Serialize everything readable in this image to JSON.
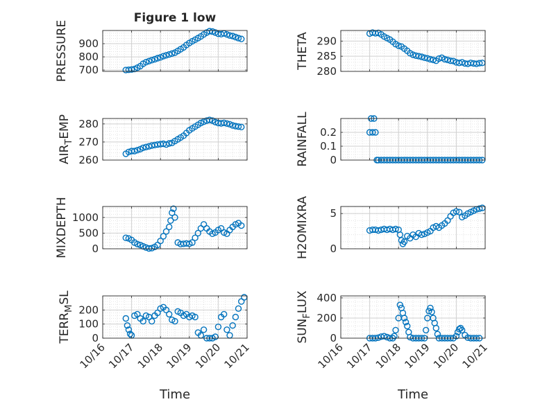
{
  "figure": {
    "title": "Figure 1 low",
    "x_ticks": [
      "10/16",
      "10/17",
      "10/18",
      "10/19",
      "10/20",
      "10/21"
    ],
    "xlabel": "Time"
  },
  "colors": {
    "marker": "#0072BD",
    "axis": "#262626",
    "grid": "#dedede"
  },
  "chart_data": [
    {
      "type": "scatter",
      "ylabel": "PRESSURE",
      "ylim": [
        690,
        1000
      ],
      "y_ticks": [
        700,
        800,
        900
      ],
      "grid": true,
      "marker": "circle",
      "x": [
        16.8,
        16.9,
        17.0,
        17.1,
        17.2,
        17.3,
        17.4,
        17.5,
        17.6,
        17.7,
        17.8,
        17.9,
        18.0,
        18.1,
        18.2,
        18.3,
        18.4,
        18.5,
        18.6,
        18.7,
        18.8,
        18.9,
        19.0,
        19.1,
        19.2,
        19.3,
        19.4,
        19.5,
        19.6,
        19.7,
        19.8,
        19.9,
        20.0,
        20.1,
        20.2,
        20.3,
        20.4,
        20.5,
        20.6,
        20.7,
        20.8
      ],
      "y": [
        700,
        702,
        704,
        708,
        718,
        730,
        748,
        760,
        768,
        775,
        782,
        790,
        796,
        805,
        812,
        818,
        825,
        832,
        845,
        858,
        872,
        890,
        905,
        918,
        930,
        942,
        955,
        970,
        985,
        995,
        992,
        985,
        975,
        972,
        978,
        970,
        962,
        958,
        950,
        942,
        936
      ]
    },
    {
      "type": "scatter",
      "ylabel": "THETA",
      "ylim": [
        280,
        293.5
      ],
      "y_ticks": [
        280,
        285,
        290
      ],
      "grid": true,
      "marker": "circle",
      "x": [
        17.0,
        17.1,
        17.2,
        17.3,
        17.4,
        17.5,
        17.6,
        17.7,
        17.8,
        17.9,
        18.0,
        18.1,
        18.2,
        18.3,
        18.4,
        18.5,
        18.6,
        18.7,
        18.8,
        18.9,
        19.0,
        19.1,
        19.2,
        19.3,
        19.4,
        19.5,
        19.6,
        19.7,
        19.8,
        19.9,
        20.0,
        20.1,
        20.2,
        20.3,
        20.4,
        20.5,
        20.6,
        20.7,
        20.8,
        20.9
      ],
      "y": [
        292.5,
        292.8,
        292.6,
        292.7,
        292.2,
        291.5,
        291.0,
        290.5,
        289.8,
        289.0,
        288.5,
        288.2,
        287.5,
        286.8,
        286.0,
        285.5,
        285.2,
        285.0,
        284.8,
        284.5,
        284.3,
        284.0,
        283.8,
        283.5,
        284.2,
        284.5,
        284.0,
        283.8,
        283.5,
        283.4,
        283.0,
        282.8,
        283.0,
        282.6,
        282.5,
        282.8,
        282.6,
        282.5,
        282.7,
        282.8
      ]
    },
    {
      "type": "scatter",
      "ylabel": "AIR_TEMP",
      "ylim": [
        260,
        283
      ],
      "y_ticks": [
        260,
        270,
        280
      ],
      "grid": true,
      "marker": "circle",
      "x": [
        16.8,
        16.9,
        17.0,
        17.1,
        17.2,
        17.3,
        17.4,
        17.5,
        17.6,
        17.7,
        17.8,
        17.9,
        18.0,
        18.1,
        18.2,
        18.3,
        18.4,
        18.5,
        18.6,
        18.7,
        18.8,
        18.9,
        19.0,
        19.1,
        19.2,
        19.3,
        19.4,
        19.5,
        19.6,
        19.7,
        19.8,
        19.9,
        20.0,
        20.1,
        20.2,
        20.3,
        20.4,
        20.5,
        20.6,
        20.7,
        20.8
      ],
      "y": [
        263.5,
        264.5,
        265.0,
        265.0,
        265.5,
        266.0,
        266.8,
        267.2,
        267.6,
        268.0,
        268.3,
        268.6,
        268.8,
        269.0,
        268.6,
        269.2,
        269.5,
        270.5,
        271.5,
        272.5,
        273.5,
        275.0,
        276.5,
        277.5,
        278.5,
        279.5,
        280.5,
        281.2,
        281.8,
        282.2,
        281.8,
        281.0,
        280.5,
        280.3,
        280.6,
        280.2,
        279.8,
        279.2,
        278.8,
        278.5,
        278.3
      ]
    },
    {
      "type": "scatter",
      "ylabel": "RAINFALL",
      "ylim": [
        0,
        0.3
      ],
      "y_ticks": [
        0,
        0.1,
        0.2
      ],
      "grid": true,
      "marker": "circle",
      "x": [
        17.0,
        17.05,
        17.1,
        17.15,
        17.2,
        17.25,
        17.3,
        17.4,
        17.5,
        17.6,
        17.7,
        17.8,
        17.9,
        18.0,
        18.1,
        18.2,
        18.3,
        18.4,
        18.5,
        18.6,
        18.7,
        18.8,
        18.9,
        19.0,
        19.1,
        19.2,
        19.3,
        19.4,
        19.5,
        19.6,
        19.7,
        19.8,
        19.9,
        20.0,
        20.1,
        20.2,
        20.3,
        20.4,
        20.5,
        20.6,
        20.7,
        20.8,
        20.9
      ],
      "y": [
        0.2,
        0.3,
        0.2,
        0.3,
        0.2,
        0.0,
        0.0,
        0.0,
        0.0,
        0.0,
        0.0,
        0.0,
        0.0,
        0.0,
        0.0,
        0.0,
        0.0,
        0.0,
        0.0,
        0.0,
        0.0,
        0.0,
        0.0,
        0.0,
        0.0,
        0.0,
        0.0,
        0.0,
        0.0,
        0.0,
        0.0,
        0.0,
        0.0,
        0.0,
        0.0,
        0.0,
        0.0,
        0.0,
        0.0,
        0.0,
        0.0,
        0.0,
        0.0
      ]
    },
    {
      "type": "scatter",
      "ylabel": "MIXDEPTH",
      "ylim": [
        0,
        1350
      ],
      "y_ticks": [
        0,
        500,
        1000
      ],
      "grid": true,
      "marker": "circle",
      "x": [
        16.8,
        16.9,
        17.0,
        17.1,
        17.2,
        17.3,
        17.4,
        17.5,
        17.6,
        17.7,
        17.8,
        17.9,
        18.0,
        18.1,
        18.2,
        18.3,
        18.35,
        18.4,
        18.45,
        18.5,
        18.6,
        18.7,
        18.8,
        18.9,
        19.0,
        19.1,
        19.2,
        19.3,
        19.4,
        19.5,
        19.6,
        19.7,
        19.8,
        19.9,
        20.0,
        20.1,
        20.2,
        20.3,
        20.4,
        20.5,
        20.6,
        20.7,
        20.8
      ],
      "y": [
        350,
        330,
        280,
        200,
        150,
        120,
        80,
        40,
        10,
        20,
        60,
        120,
        250,
        400,
        550,
        700,
        900,
        1150,
        1280,
        1000,
        200,
        150,
        160,
        170,
        160,
        200,
        350,
        500,
        650,
        780,
        650,
        550,
        480,
        520,
        600,
        650,
        520,
        480,
        600,
        700,
        780,
        820,
        740
      ]
    },
    {
      "type": "scatter",
      "ylabel": "H2OMIXRA",
      "ylim": [
        0,
        6
      ],
      "y_ticks": [
        0,
        5
      ],
      "grid": true,
      "marker": "circle",
      "x": [
        17.0,
        17.1,
        17.2,
        17.3,
        17.4,
        17.5,
        17.6,
        17.7,
        17.8,
        17.9,
        18.0,
        18.05,
        18.1,
        18.15,
        18.2,
        18.3,
        18.4,
        18.5,
        18.6,
        18.7,
        18.8,
        18.9,
        19.0,
        19.1,
        19.2,
        19.3,
        19.4,
        19.5,
        19.6,
        19.7,
        19.8,
        19.9,
        20.0,
        20.1,
        20.2,
        20.3,
        20.4,
        20.5,
        20.6,
        20.7,
        20.8,
        20.9
      ],
      "y": [
        2.6,
        2.7,
        2.7,
        2.6,
        2.7,
        2.8,
        2.7,
        2.8,
        2.7,
        2.8,
        2.7,
        2.0,
        1.2,
        0.7,
        1.0,
        1.8,
        1.5,
        2.0,
        1.7,
        2.2,
        2.0,
        2.1,
        2.3,
        2.5,
        3.0,
        3.2,
        3.0,
        3.3,
        3.6,
        4.0,
        4.6,
        5.1,
        5.3,
        5.2,
        4.5,
        4.7,
        5.0,
        5.2,
        5.4,
        5.6,
        5.7,
        5.8
      ]
    },
    {
      "type": "scatter",
      "ylabel": "TERR_MSL",
      "ylim": [
        0,
        300
      ],
      "y_ticks": [
        0,
        100,
        200
      ],
      "grid": true,
      "marker": "circle",
      "x": [
        16.8,
        16.85,
        16.9,
        16.95,
        17.0,
        17.1,
        17.2,
        17.3,
        17.4,
        17.5,
        17.6,
        17.7,
        17.8,
        17.9,
        18.0,
        18.1,
        18.2,
        18.3,
        18.4,
        18.5,
        18.6,
        18.7,
        18.8,
        18.9,
        19.0,
        19.1,
        19.2,
        19.3,
        19.4,
        19.5,
        19.6,
        19.7,
        19.8,
        19.9,
        20.0,
        20.1,
        20.2,
        20.3,
        20.4,
        20.5,
        20.6,
        20.7,
        20.8,
        20.9
      ],
      "y": [
        140,
        90,
        60,
        30,
        20,
        160,
        170,
        140,
        120,
        160,
        150,
        120,
        160,
        180,
        210,
        220,
        200,
        170,
        130,
        120,
        190,
        180,
        160,
        170,
        150,
        160,
        150,
        40,
        20,
        60,
        0,
        0,
        0,
        10,
        80,
        150,
        170,
        60,
        20,
        90,
        150,
        210,
        260,
        290
      ]
    },
    {
      "type": "scatter",
      "ylabel": "SUN_FLUX",
      "ylim": [
        0,
        420
      ],
      "y_ticks": [
        0,
        200,
        400
      ],
      "grid": true,
      "marker": "circle",
      "x": [
        17.0,
        17.1,
        17.2,
        17.3,
        17.4,
        17.5,
        17.6,
        17.7,
        17.8,
        17.85,
        17.9,
        18.0,
        18.05,
        18.1,
        18.15,
        18.2,
        18.25,
        18.3,
        18.35,
        18.4,
        18.5,
        18.6,
        18.7,
        18.8,
        18.9,
        18.95,
        19.0,
        19.05,
        19.1,
        19.15,
        19.2,
        19.25,
        19.3,
        19.35,
        19.4,
        19.5,
        19.6,
        19.7,
        19.8,
        19.9,
        20.0,
        20.05,
        20.1,
        20.15,
        20.2,
        20.3,
        20.4,
        20.5,
        20.6,
        20.7,
        20.8
      ],
      "y": [
        0,
        0,
        0,
        5,
        15,
        20,
        10,
        0,
        0,
        20,
        80,
        200,
        330,
        300,
        250,
        200,
        160,
        120,
        60,
        10,
        0,
        0,
        0,
        0,
        0,
        80,
        200,
        270,
        300,
        260,
        200,
        150,
        100,
        40,
        0,
        0,
        0,
        0,
        0,
        0,
        20,
        60,
        90,
        100,
        80,
        30,
        5,
        0,
        0,
        0,
        0
      ]
    }
  ]
}
